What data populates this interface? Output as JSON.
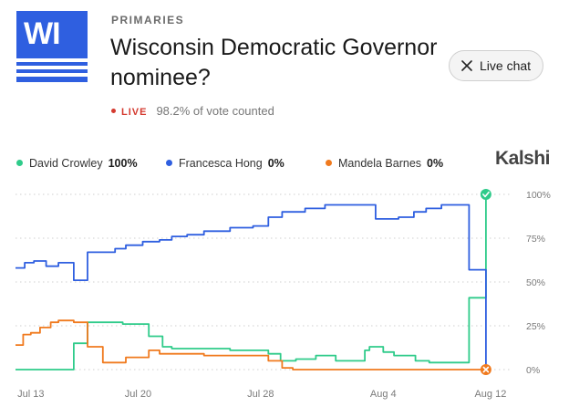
{
  "header": {
    "badge": "WI",
    "category": "PRIMARIES",
    "title": "Wisconsin Democratic Governor nominee?",
    "live_label": "LIVE",
    "vote_status": "98.2% of vote counted",
    "live_chat_label": "Live chat",
    "live_chat_icon": "close-icon",
    "brand": "Kalshi"
  },
  "colors": {
    "badge_blue": "#2f5fe0",
    "live_red": "#d43a2f",
    "crowley": "#2fcb8a",
    "hong": "#2f5fe0",
    "barnes": "#f07a1e"
  },
  "legend": [
    {
      "name": "David Crowley",
      "value": "100%",
      "color": "#2fcb8a"
    },
    {
      "name": "Francesca Hong",
      "value": "0%",
      "color": "#2f5fe0"
    },
    {
      "name": "Mandela Barnes",
      "value": "0%",
      "color": "#f07a1e"
    }
  ],
  "chart_data": {
    "type": "line",
    "x_unit": "days",
    "xlim": [
      0,
      31.6
    ],
    "ylim": [
      0,
      100
    ],
    "y_ticks": [
      0,
      25,
      50,
      75,
      100
    ],
    "y_tick_labels": [
      "0%",
      "25%",
      "50%",
      "75%",
      "100%"
    ],
    "x_ticks": [
      1,
      8,
      16,
      24,
      31
    ],
    "x_tick_labels": [
      "Jul 13",
      "Jul 20",
      "Jul 28",
      "Aug 4",
      "Aug 12"
    ],
    "grid": "dotted horizontal",
    "legend_position": "top",
    "series": [
      {
        "name": "David Crowley",
        "color": "#2fcb8a",
        "end_marker": "check",
        "points": [
          [
            0,
            0
          ],
          [
            3.8,
            0
          ],
          [
            3.8,
            15
          ],
          [
            4.7,
            15
          ],
          [
            4.7,
            27
          ],
          [
            7,
            27
          ],
          [
            7,
            26
          ],
          [
            8.7,
            26
          ],
          [
            8.7,
            19
          ],
          [
            9.6,
            19
          ],
          [
            9.6,
            13
          ],
          [
            10.2,
            13
          ],
          [
            10.2,
            12
          ],
          [
            14,
            12
          ],
          [
            14,
            11
          ],
          [
            16.5,
            11
          ],
          [
            16.5,
            9
          ],
          [
            17.3,
            9
          ],
          [
            17.3,
            5
          ],
          [
            18.3,
            5
          ],
          [
            18.3,
            6
          ],
          [
            19.6,
            6
          ],
          [
            19.6,
            8
          ],
          [
            20.9,
            8
          ],
          [
            20.9,
            5
          ],
          [
            22.8,
            5
          ],
          [
            22.8,
            11
          ],
          [
            23.1,
            11
          ],
          [
            23.1,
            13
          ],
          [
            24,
            13
          ],
          [
            24,
            10
          ],
          [
            24.7,
            10
          ],
          [
            24.7,
            8
          ],
          [
            26.1,
            8
          ],
          [
            26.1,
            5
          ],
          [
            27,
            5
          ],
          [
            27,
            4
          ],
          [
            29.6,
            4
          ],
          [
            29.6,
            41
          ],
          [
            30.7,
            41
          ],
          [
            30.7,
            100
          ]
        ]
      },
      {
        "name": "Francesca Hong",
        "color": "#2f5fe0",
        "end_marker": "none",
        "points": [
          [
            0,
            58
          ],
          [
            0.6,
            58
          ],
          [
            0.6,
            61
          ],
          [
            1.2,
            61
          ],
          [
            1.2,
            62
          ],
          [
            2,
            62
          ],
          [
            2,
            59
          ],
          [
            2.8,
            59
          ],
          [
            2.8,
            61
          ],
          [
            3.8,
            61
          ],
          [
            3.8,
            51
          ],
          [
            4.7,
            51
          ],
          [
            4.7,
            67
          ],
          [
            6.5,
            67
          ],
          [
            6.5,
            69
          ],
          [
            7.2,
            69
          ],
          [
            7.2,
            71
          ],
          [
            8.3,
            71
          ],
          [
            8.3,
            73
          ],
          [
            9.4,
            73
          ],
          [
            9.4,
            74
          ],
          [
            10.2,
            74
          ],
          [
            10.2,
            76
          ],
          [
            11.2,
            76
          ],
          [
            11.2,
            77
          ],
          [
            12.3,
            77
          ],
          [
            12.3,
            79
          ],
          [
            14,
            79
          ],
          [
            14,
            81
          ],
          [
            15.5,
            81
          ],
          [
            15.5,
            82
          ],
          [
            16.5,
            82
          ],
          [
            16.5,
            87
          ],
          [
            17.4,
            87
          ],
          [
            17.4,
            90
          ],
          [
            18.9,
            90
          ],
          [
            18.9,
            92
          ],
          [
            20.2,
            92
          ],
          [
            20.2,
            94
          ],
          [
            23.5,
            94
          ],
          [
            23.5,
            86
          ],
          [
            25,
            86
          ],
          [
            25,
            87
          ],
          [
            26,
            87
          ],
          [
            26,
            90
          ],
          [
            26.8,
            90
          ],
          [
            26.8,
            92
          ],
          [
            27.8,
            92
          ],
          [
            27.8,
            94
          ],
          [
            29.6,
            94
          ],
          [
            29.6,
            57
          ],
          [
            30.7,
            57
          ],
          [
            30.7,
            0
          ]
        ]
      },
      {
        "name": "Mandela Barnes",
        "color": "#f07a1e",
        "end_marker": "x",
        "points": [
          [
            0,
            14
          ],
          [
            0.5,
            14
          ],
          [
            0.5,
            20
          ],
          [
            1,
            20
          ],
          [
            1,
            21
          ],
          [
            1.6,
            21
          ],
          [
            1.6,
            24
          ],
          [
            2.3,
            24
          ],
          [
            2.3,
            27
          ],
          [
            2.8,
            27
          ],
          [
            2.8,
            28
          ],
          [
            3.8,
            28
          ],
          [
            3.8,
            27
          ],
          [
            4.7,
            27
          ],
          [
            4.7,
            13
          ],
          [
            5.7,
            13
          ],
          [
            5.7,
            4
          ],
          [
            7.2,
            4
          ],
          [
            7.2,
            7
          ],
          [
            8.7,
            7
          ],
          [
            8.7,
            11
          ],
          [
            9.4,
            11
          ],
          [
            9.4,
            9
          ],
          [
            12.3,
            9
          ],
          [
            12.3,
            8
          ],
          [
            16.5,
            8
          ],
          [
            16.5,
            5
          ],
          [
            17.4,
            5
          ],
          [
            17.4,
            1
          ],
          [
            18.1,
            1
          ],
          [
            18.1,
            0
          ],
          [
            30.7,
            0
          ]
        ]
      }
    ]
  }
}
